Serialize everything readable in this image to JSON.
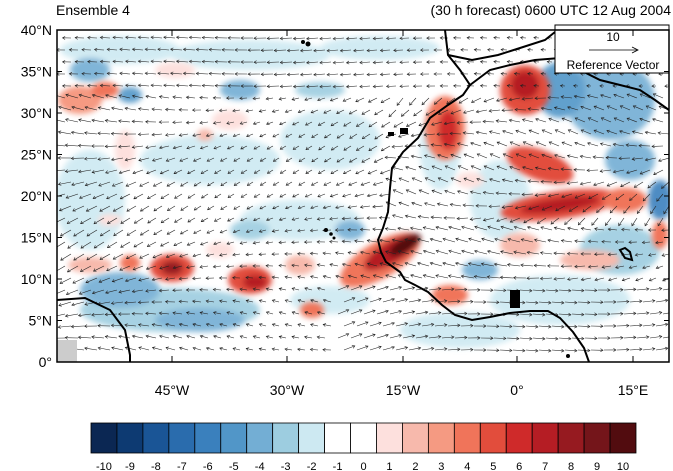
{
  "title_left": "Ensemble 4",
  "title_right": "(30 h forecast) 0600 UTC 12 Aug 2004",
  "lat_labels": [
    "40°N",
    "35°N",
    "30°N",
    "25°N",
    "20°N",
    "15°N",
    "10°N",
    "5°N",
    "0°"
  ],
  "lon_labels": [
    "45°W",
    "30°W",
    "15°W",
    "0°",
    "15°E"
  ],
  "reference_vector": {
    "value": "10",
    "label": "Reference Vector"
  },
  "colorbar": {
    "labels": [
      "-10",
      "-9",
      "-8",
      "-7",
      "-6",
      "-5",
      "-4",
      "-3",
      "-2",
      "-1",
      "0",
      "1",
      "2",
      "3",
      "4",
      "5",
      "6",
      "7",
      "8",
      "9",
      "10"
    ],
    "colors": [
      "#0b2753",
      "#0d3a72",
      "#1a5596",
      "#2a6cad",
      "#3a80bd",
      "#5196c8",
      "#73aed4",
      "#9dcde0",
      "#cde9f2",
      "#ffffff",
      "#ffffff",
      "#fde0dd",
      "#f7b9ac",
      "#f59a82",
      "#f0745a",
      "#e24d3c",
      "#cf2a2a",
      "#b51d24",
      "#961a20",
      "#74151a",
      "#520c0f"
    ]
  }
}
